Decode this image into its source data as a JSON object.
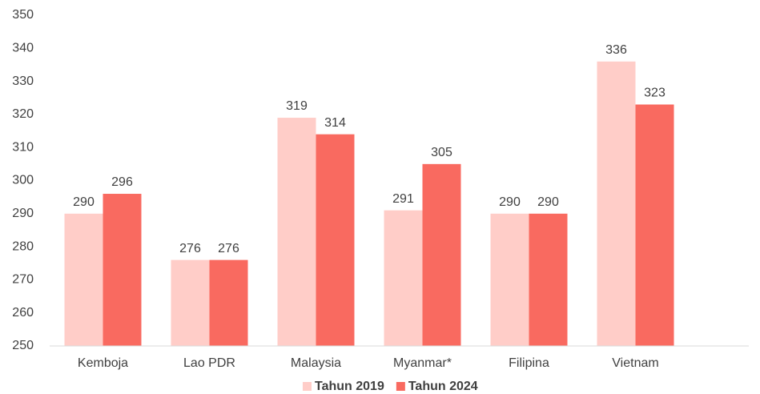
{
  "chart_data": {
    "type": "bar",
    "categories": [
      "Kemboja",
      "Lao PDR",
      "Malaysia",
      "Myanmar*",
      "Filipina",
      "Vietnam"
    ],
    "series": [
      {
        "name": "Tahun 2019",
        "color": "#ffcdc8",
        "values": [
          290,
          276,
          319,
          291,
          290,
          336
        ]
      },
      {
        "name": "Tahun 2024",
        "color": "#f96a60",
        "values": [
          296,
          276,
          314,
          305,
          290,
          323
        ]
      }
    ],
    "ylim": [
      250,
      350
    ],
    "yticks": [
      250,
      260,
      270,
      280,
      290,
      300,
      310,
      320,
      330,
      340,
      350
    ],
    "grid": false,
    "legend": "bottom"
  }
}
